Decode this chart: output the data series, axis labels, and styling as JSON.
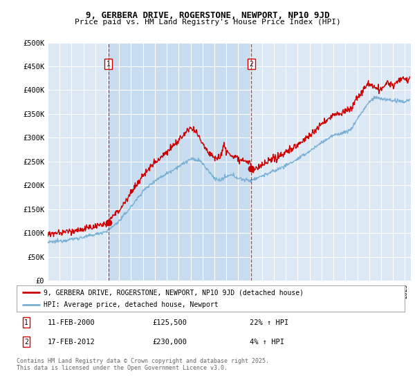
{
  "title": "9, GERBERA DRIVE, ROGERSTONE, NEWPORT, NP10 9JD",
  "subtitle": "Price paid vs. HM Land Registry's House Price Index (HPI)",
  "ylabel_ticks": [
    "£0",
    "£50K",
    "£100K",
    "£150K",
    "£200K",
    "£250K",
    "£300K",
    "£350K",
    "£400K",
    "£450K",
    "£500K"
  ],
  "ylim": [
    0,
    500000
  ],
  "xlim_start": 1995.0,
  "xlim_end": 2025.5,
  "background_color": "#dce9f5",
  "highlight_color": "#c8dcf0",
  "grid_color": "#ffffff",
  "red_line_color": "#cc0000",
  "blue_line_color": "#7ab0d4",
  "ann1_x": 2000.1,
  "ann2_x": 2012.1,
  "annotation1": {
    "x": 2000.1,
    "label": "1",
    "price": 125500,
    "date": "11-FEB-2000",
    "pct": "22% ↑ HPI"
  },
  "annotation2": {
    "x": 2012.1,
    "label": "2",
    "price": 230000,
    "date": "17-FEB-2012",
    "pct": "4% ↑ HPI"
  },
  "legend_red": "9, GERBERA DRIVE, ROGERSTONE, NEWPORT, NP10 9JD (detached house)",
  "legend_blue": "HPI: Average price, detached house, Newport",
  "footer": "Contains HM Land Registry data © Crown copyright and database right 2025.\nThis data is licensed under the Open Government Licence v3.0.",
  "sale_points": [
    {
      "year": 2000.1,
      "price": 125500
    },
    {
      "year": 2012.1,
      "price": 230000
    }
  ]
}
